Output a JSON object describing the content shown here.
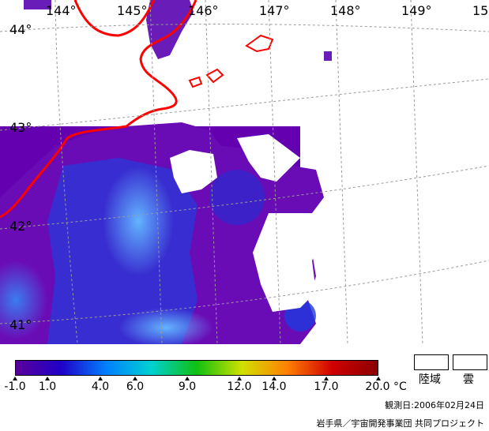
{
  "map": {
    "longitude_labels": [
      "144°",
      "145°",
      "146°",
      "147°",
      "148°",
      "149°",
      "15"
    ],
    "latitude_labels": [
      "44°",
      "43°",
      "42°",
      "41°"
    ],
    "colors": {
      "coastline": "#ff0000",
      "land": "#ffffff",
      "cloud": "#ffffff",
      "grid": "#999999",
      "sea_warm": "#6a00b8",
      "sea_mid": "#2040e0",
      "sea_cool": "#4fa8ff"
    }
  },
  "colorbar": {
    "tick_labels": [
      "-1.0",
      "1.0",
      "4.0",
      "6.0",
      "9.0",
      "12.0",
      "14.0",
      "17.0",
      "20.0"
    ],
    "unit": "°C",
    "colors": [
      "#5a009a",
      "#2000c8",
      "#0080ff",
      "#00d0d0",
      "#10c010",
      "#d0e000",
      "#ff8000",
      "#d00000",
      "#8a0000"
    ]
  },
  "legend": {
    "land_label": "陸域",
    "cloud_label": "雲"
  },
  "observation_date": "観測日:2006年02月24日",
  "credit": "岩手県／宇宙開発事業団 共同プロジェクト"
}
